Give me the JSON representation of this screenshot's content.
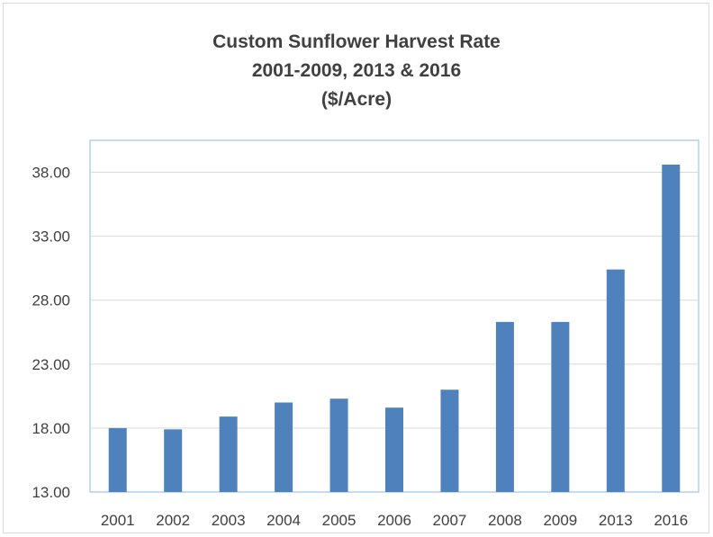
{
  "chart_data": {
    "type": "bar",
    "title": "Custom Sunflower Harvest Rate",
    "subtitle": "2001-2009, 2013 & 2016",
    "unit": "($/Acre)",
    "xlabel": "",
    "ylabel": "",
    "categories": [
      "2001",
      "2002",
      "2003",
      "2004",
      "2005",
      "2006",
      "2007",
      "2008",
      "2009",
      "2013",
      "2016"
    ],
    "values": [
      18.0,
      17.9,
      18.9,
      20.0,
      20.3,
      19.6,
      21.0,
      26.3,
      26.3,
      30.4,
      38.6
    ],
    "ylim": [
      13.0,
      40.5
    ],
    "yticks": [
      "13.00",
      "18.00",
      "23.00",
      "28.00",
      "33.00",
      "38.00"
    ],
    "ytick_values": [
      13,
      18,
      23,
      28,
      33,
      38
    ],
    "grid": true,
    "legend": "none",
    "bar_color": "#4f81bd",
    "grid_color": "#d9d9d9",
    "plot_border_color": "#9dc3e6"
  }
}
